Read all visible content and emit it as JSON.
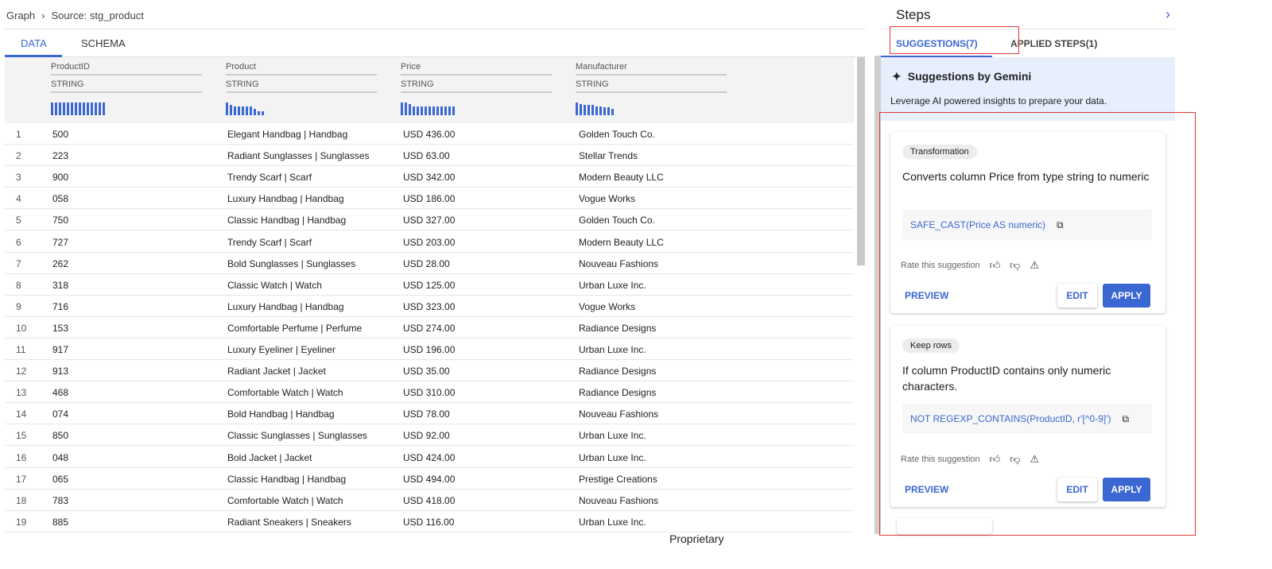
{
  "breadcrumb": {
    "root": "Graph",
    "current": "Source: stg_product"
  },
  "tabs": {
    "data": "DATA",
    "schema": "SCHEMA"
  },
  "columns": [
    {
      "name": "ProductID",
      "type": "STRING",
      "histogram": [
        1,
        1,
        1,
        1,
        1,
        1,
        1,
        1,
        1,
        1,
        1,
        1,
        1,
        1
      ]
    },
    {
      "name": "Product",
      "type": "STRING",
      "histogram": [
        1,
        0.8,
        0.7,
        0.7,
        0.7,
        0.7,
        0.7,
        0.5,
        0.3,
        0.3
      ]
    },
    {
      "name": "Price",
      "type": "STRING",
      "histogram": [
        1,
        1,
        0.9,
        0.7,
        0.7,
        0.7,
        0.7,
        0.7,
        0.7,
        0.7,
        0.7,
        0.7,
        0.7,
        0.7
      ]
    },
    {
      "name": "Manufacturer",
      "type": "STRING",
      "histogram": [
        1,
        0.85,
        0.8,
        0.8,
        0.8,
        0.7,
        0.7,
        0.6,
        0.6,
        0.5
      ]
    }
  ],
  "rows": [
    [
      "1",
      "500",
      "Elegant Handbag | Handbag",
      "USD 436.00",
      "Golden Touch Co."
    ],
    [
      "2",
      "223",
      "Radiant Sunglasses | Sunglasses",
      "USD 63.00",
      "Stellar Trends"
    ],
    [
      "3",
      "900",
      "Trendy Scarf | Scarf",
      "USD 342.00",
      "Modern Beauty LLC"
    ],
    [
      "4",
      "058",
      "Luxury Handbag | Handbag",
      "USD 186.00",
      "Vogue Works"
    ],
    [
      "5",
      "750",
      "Classic Handbag | Handbag",
      "USD 327.00",
      "Golden Touch Co."
    ],
    [
      "6",
      "727",
      "Trendy Scarf | Scarf",
      "USD 203.00",
      "Modern Beauty LLC"
    ],
    [
      "7",
      "262",
      "Bold Sunglasses | Sunglasses",
      "USD 28.00",
      "Nouveau Fashions"
    ],
    [
      "8",
      "318",
      "Classic Watch | Watch",
      "USD 125.00",
      "Urban Luxe Inc."
    ],
    [
      "9",
      "716",
      "Luxury Handbag | Handbag",
      "USD 323.00",
      "Vogue Works"
    ],
    [
      "10",
      "153",
      "Comfortable Perfume | Perfume",
      "USD 274.00",
      "Radiance Designs"
    ],
    [
      "11",
      "917",
      "Luxury Eyeliner | Eyeliner",
      "USD 196.00",
      "Urban Luxe Inc."
    ],
    [
      "12",
      "913",
      "Radiant Jacket | Jacket",
      "USD 35.00",
      "Radiance Designs"
    ],
    [
      "13",
      "468",
      "Comfortable Watch | Watch",
      "USD 310.00",
      "Radiance Designs"
    ],
    [
      "14",
      "074",
      "Bold Handbag | Handbag",
      "USD 78.00",
      "Nouveau Fashions"
    ],
    [
      "15",
      "850",
      "Classic Sunglasses | Sunglasses",
      "USD 92.00",
      "Urban Luxe Inc."
    ],
    [
      "16",
      "048",
      "Bold Jacket | Jacket",
      "USD 424.00",
      "Urban Luxe Inc."
    ],
    [
      "17",
      "065",
      "Classic Handbag | Handbag",
      "USD 494.00",
      "Prestige Creations"
    ],
    [
      "18",
      "783",
      "Comfortable Watch | Watch",
      "USD 418.00",
      "Nouveau Fashions"
    ],
    [
      "19",
      "885",
      "Radiant Sneakers | Sneakers",
      "USD 116.00",
      "Urban Luxe Inc."
    ]
  ],
  "footer": "Proprietary",
  "steps": {
    "title": "Steps",
    "tab_suggestions": "SUGGESTIONS(7)",
    "tab_applied": "APPLIED STEPS(1)"
  },
  "gemini": {
    "title": "Suggestions by Gemini",
    "subtitle": "Leverage AI powered insights to prepare your data."
  },
  "cards": [
    {
      "chip": "Transformation",
      "desc": "Converts column Price from type string to numeric",
      "code": "SAFE_CAST(Price AS numeric)",
      "rate": "Rate this suggestion",
      "preview": "PREVIEW",
      "edit": "EDIT",
      "apply": "APPLY"
    },
    {
      "chip": "Keep rows",
      "desc": "If column ProductID contains only numeric characters.",
      "code": "NOT REGEXP_CONTAINS(ProductID, r'[^0-9]')",
      "rate": "Rate this suggestion",
      "preview": "PREVIEW",
      "edit": "EDIT",
      "apply": "APPLY"
    }
  ],
  "colors": {
    "accent": "#3b67d2",
    "annotation": "#e53935"
  }
}
